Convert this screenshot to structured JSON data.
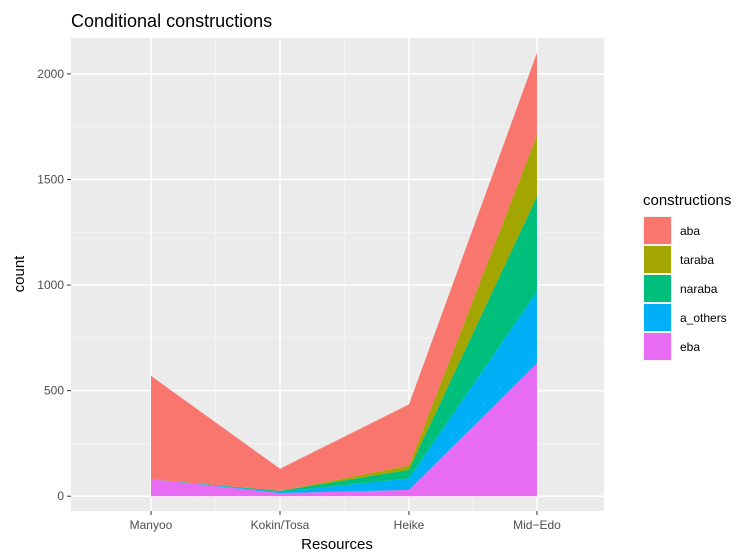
{
  "chart_data": {
    "type": "area",
    "stacked": true,
    "title": "Conditional constructions",
    "xlabel": "Resources",
    "ylabel": "count",
    "categories": [
      "Manyoo",
      "Kokin/Tosa",
      "Heike",
      "Mid−Edo"
    ],
    "ylim": [
      -70,
      2170
    ],
    "yticks": [
      0,
      500,
      1000,
      1500,
      2000
    ],
    "grid": true,
    "legend": {
      "title": "constructions",
      "position": "right"
    },
    "series": [
      {
        "name": "eba",
        "color": "#E76BF3",
        "values": [
          80,
          15,
          30,
          630
        ]
      },
      {
        "name": "a_others",
        "color": "#00B0F6",
        "values": [
          0,
          5,
          55,
          340
        ]
      },
      {
        "name": "naraba",
        "color": "#00BF7D",
        "values": [
          0,
          5,
          40,
          450
        ]
      },
      {
        "name": "taraba",
        "color": "#A3A500",
        "values": [
          0,
          0,
          20,
          290
        ]
      },
      {
        "name": "aba",
        "color": "#F8766D",
        "values": [
          490,
          105,
          290,
          390
        ]
      }
    ],
    "legend_order": [
      "aba",
      "taraba",
      "naraba",
      "a_others",
      "eba"
    ]
  }
}
